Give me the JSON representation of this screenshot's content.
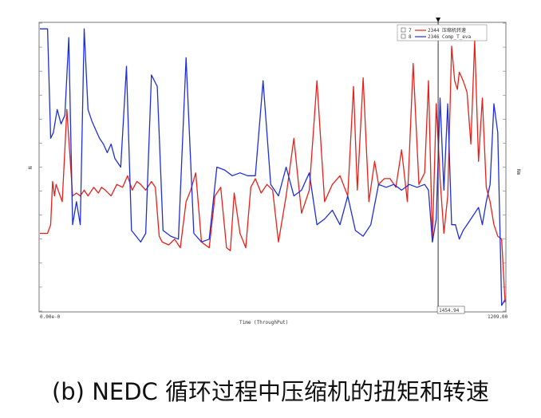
{
  "caption": "(b) NEDC 循环过程中压缩机的扭矩和转速",
  "chart_data": {
    "type": "line",
    "xlabel": "Time (ThroughPut)",
    "x_start_label": "0.00e-0",
    "x_end_label": "1209.00",
    "cursor_value": "1454.94",
    "xlim": [
      0,
      1209
    ],
    "cursor_x": 1035,
    "left_axis_label": "N",
    "right_axis_label": "Nm",
    "ylim": [
      0,
      100
    ],
    "grid": false,
    "legend_position": "top-right",
    "series": [
      {
        "name": "2344 压缩机转速",
        "legend_index": "7",
        "color": "#e8201a",
        "x": [
          0,
          20,
          28,
          33,
          38,
          42,
          50,
          58,
          70,
          85,
          95,
          105,
          115,
          125,
          140,
          152,
          160,
          170,
          185,
          200,
          215,
          228,
          240,
          252,
          262,
          275,
          290,
          300,
          310,
          318,
          335,
          350,
          365,
          380,
          392,
          405,
          420,
          440,
          455,
          470,
          485,
          495,
          505,
          520,
          535,
          548,
          560,
          575,
          590,
          605,
          620,
          640,
          660,
          680,
          700,
          720,
          740,
          760,
          780,
          800,
          815,
          825,
          840,
          855,
          870,
          880,
          895,
          910,
          925,
          940,
          955,
          970,
          985,
          1000,
          1010,
          1020,
          1030,
          1040,
          1050,
          1060,
          1070,
          1078,
          1085,
          1090,
          1100,
          1110,
          1120,
          1130,
          1140,
          1150,
          1160,
          1170,
          1180,
          1190,
          1200,
          1209
        ],
        "y": [
          27,
          27,
          30,
          45,
          40,
          44,
          41,
          38,
          70,
          40,
          41,
          40,
          42,
          40,
          43,
          41,
          43,
          42,
          40,
          44,
          43,
          47,
          42,
          45,
          44,
          42,
          45,
          43,
          26,
          24,
          23,
          25,
          22,
          38,
          42,
          48,
          24,
          22,
          40,
          43,
          22,
          21,
          41,
          27,
          22,
          43,
          46,
          41,
          44,
          42,
          24,
          40,
          60,
          34,
          42,
          80,
          38,
          44,
          47,
          40,
          78,
          42,
          81,
          38,
          52,
          44,
          46,
          46,
          43,
          56,
          38,
          86,
          44,
          48,
          80,
          24,
          72,
          46,
          27,
          40,
          92,
          80,
          77,
          83,
          80,
          76,
          58,
          94,
          52,
          74,
          43,
          38,
          30,
          26,
          25,
          3
        ]
      },
      {
        "name": "2346 Comp_T_eva",
        "legend_index": "8",
        "color": "#1f2fd8",
        "x": [
          0,
          10,
          20,
          28,
          35,
          45,
          55,
          65,
          75,
          85,
          95,
          105,
          115,
          125,
          135,
          145,
          155,
          165,
          175,
          185,
          195,
          210,
          225,
          238,
          250,
          262,
          275,
          290,
          305,
          320,
          340,
          360,
          380,
          400,
          420,
          440,
          460,
          480,
          500,
          520,
          540,
          560,
          580,
          600,
          620,
          640,
          660,
          680,
          700,
          720,
          740,
          760,
          780,
          800,
          820,
          840,
          860,
          880,
          900,
          920,
          940,
          960,
          980,
          1000,
          1010,
          1020,
          1030,
          1040,
          1050,
          1060,
          1070,
          1080,
          1090,
          1100,
          1110,
          1120,
          1130,
          1140,
          1150,
          1160,
          1170,
          1180,
          1190,
          1200,
          1209
        ],
        "y": [
          98,
          98,
          98,
          60,
          62,
          70,
          65,
          68,
          95,
          30,
          38,
          30,
          98,
          70,
          66,
          63,
          60,
          58,
          55,
          58,
          53,
          50,
          85,
          28,
          26,
          24,
          27,
          82,
          78,
          28,
          26,
          25,
          88,
          27,
          24,
          25,
          50,
          49,
          47,
          48,
          47,
          47,
          80,
          44,
          40,
          50,
          40,
          42,
          48,
          30,
          32,
          35,
          30,
          40,
          28,
          26,
          30,
          44,
          43,
          44,
          42,
          44,
          43,
          44,
          42,
          24,
          32,
          74,
          42,
          72,
          30,
          30,
          25,
          28,
          30,
          32,
          34,
          36,
          30,
          38,
          44,
          72,
          62,
          2,
          4
        ]
      }
    ]
  }
}
